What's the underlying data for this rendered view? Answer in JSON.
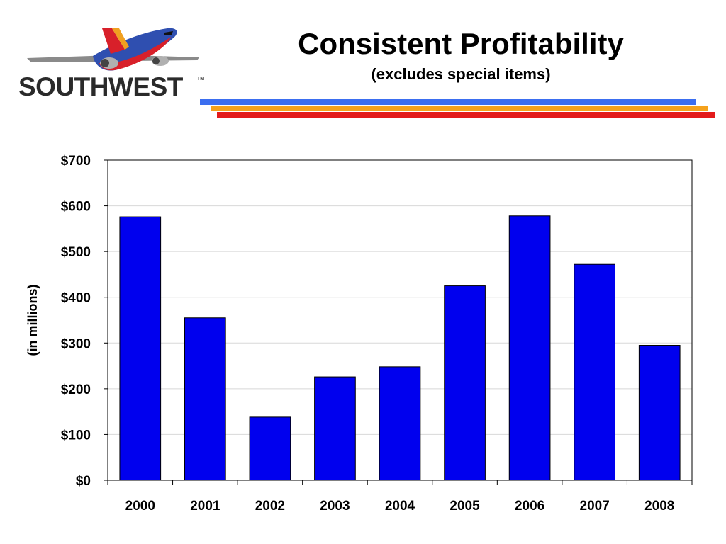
{
  "brand": {
    "name": "SOUTHWEST",
    "tm": "TM",
    "logo_icon": "airplane-logo-icon",
    "colors": {
      "fuselage_blue": "#2f4fb0",
      "belly_red": "#d8202a",
      "tail_orange": "#f0a020"
    }
  },
  "header": {
    "title": "Consistent Profitability",
    "subtitle": "(excludes special items)",
    "stripe_colors": [
      "#3b6ef0",
      "#f5a21c",
      "#e31b1b"
    ]
  },
  "chart_data": {
    "type": "bar",
    "categories": [
      "2000",
      "2001",
      "2002",
      "2003",
      "2004",
      "2005",
      "2006",
      "2007",
      "2008"
    ],
    "values": [
      576,
      355,
      138,
      226,
      248,
      425,
      578,
      472,
      295
    ],
    "ylabel": "(in millions)",
    "ylim": [
      0,
      700
    ],
    "ytick_values": [
      0,
      100,
      200,
      300,
      400,
      500,
      600,
      700
    ],
    "ytick_labels": [
      "$0",
      "$100",
      "$200",
      "$300",
      "$400",
      "$500",
      "$600",
      "$700"
    ],
    "grid": true,
    "bar_color": "#0000ee",
    "grid_color": "#d8d8d8"
  }
}
